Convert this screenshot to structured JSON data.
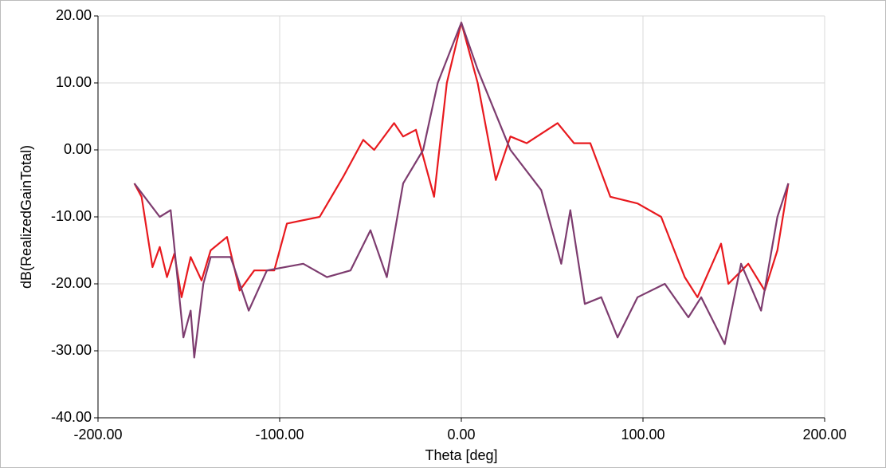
{
  "chart_data": {
    "type": "line",
    "xlabel": "Theta [deg]",
    "ylabel": "dB(RealizedGainTotal)",
    "xlim": [
      -200,
      200
    ],
    "ylim": [
      -40,
      20
    ],
    "xticks": [
      {
        "value": -200,
        "label": "-200.00"
      },
      {
        "value": -100,
        "label": "-100.00"
      },
      {
        "value": 0,
        "label": "0.00"
      },
      {
        "value": 100,
        "label": "100.00"
      },
      {
        "value": 200,
        "label": "200.00"
      }
    ],
    "yticks": [
      {
        "value": -40,
        "label": "-40.00"
      },
      {
        "value": -30,
        "label": "-30.00"
      },
      {
        "value": -20,
        "label": "-20.00"
      },
      {
        "value": -10,
        "label": "-10.00"
      },
      {
        "value": 0,
        "label": "0.00"
      },
      {
        "value": 10,
        "label": "10.00"
      },
      {
        "value": 20,
        "label": "20.00"
      }
    ],
    "grid": true,
    "series": [
      {
        "color": "#e8191e",
        "x": [
          -180,
          -176,
          -170,
          -166,
          -162,
          -158,
          -154,
          -149,
          -143,
          -138,
          -129,
          -122,
          -114,
          -103,
          -96,
          -78,
          -65,
          -54,
          -48,
          -37,
          -32,
          -25,
          -15,
          -8,
          0,
          9,
          19,
          27,
          36,
          53,
          62,
          71,
          82,
          97,
          110,
          123,
          130,
          143,
          147,
          158,
          167,
          174,
          180
        ],
        "values": [
          -5,
          -7,
          -17.5,
          -14.5,
          -19,
          -15.5,
          -22,
          -16,
          -19.5,
          -15,
          -13,
          -21,
          -18,
          -18,
          -11,
          -10,
          -4,
          1.5,
          0,
          4,
          2,
          3,
          -7,
          10,
          19,
          10,
          -4.5,
          2,
          1,
          4,
          1,
          1,
          -7,
          -8,
          -10,
          -19,
          -22,
          -14,
          -20,
          -17,
          -21,
          -15,
          -5
        ]
      },
      {
        "color": "#7d3c6f",
        "x": [
          -180,
          -166,
          -160,
          -153,
          -149,
          -147,
          -142,
          -138,
          -127,
          -117,
          -107,
          -87,
          -74,
          -61,
          -50,
          -41,
          -32,
          -21,
          -13,
          0,
          9,
          27,
          44,
          55,
          60,
          68,
          77,
          86,
          97,
          112,
          125,
          132,
          145,
          154,
          165,
          174,
          180
        ],
        "values": [
          -5,
          -10,
          -9,
          -28,
          -24,
          -31,
          -20,
          -16,
          -16,
          -24,
          -18,
          -17,
          -19,
          -18,
          -12,
          -19,
          -5,
          0,
          10,
          19,
          12,
          0,
          -6,
          -17,
          -9,
          -23,
          -22,
          -28,
          -22,
          -20,
          -25,
          -22,
          -29,
          -17,
          -24,
          -10,
          -5
        ]
      }
    ]
  }
}
